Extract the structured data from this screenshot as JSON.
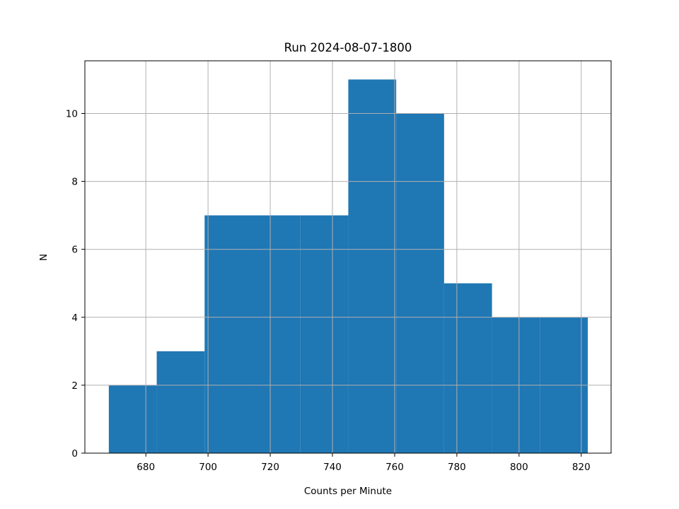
{
  "chart_data": {
    "type": "bar",
    "subtype": "histogram",
    "title": "Run 2024-08-07-1800",
    "xlabel": "Counts per Minute",
    "ylabel": "N",
    "xlim": [
      660.4,
      829.6
    ],
    "ylim": [
      0,
      11.55
    ],
    "xticks": [
      680,
      700,
      720,
      740,
      760,
      780,
      800,
      820
    ],
    "yticks": [
      0,
      2,
      4,
      6,
      8,
      10
    ],
    "grid": true,
    "bar_color": "#1f77b4",
    "bins": [
      {
        "x0": 668.1,
        "x1": 683.5,
        "count": 2
      },
      {
        "x0": 683.5,
        "x1": 698.9,
        "count": 3
      },
      {
        "x0": 698.9,
        "x1": 714.3,
        "count": 7
      },
      {
        "x0": 714.3,
        "x1": 729.7,
        "count": 7
      },
      {
        "x0": 729.7,
        "x1": 745.1,
        "count": 7
      },
      {
        "x0": 745.1,
        "x1": 760.5,
        "count": 11
      },
      {
        "x0": 760.5,
        "x1": 775.9,
        "count": 10
      },
      {
        "x0": 775.9,
        "x1": 791.3,
        "count": 5
      },
      {
        "x0": 791.3,
        "x1": 806.7,
        "count": 4
      },
      {
        "x0": 806.7,
        "x1": 822.1,
        "count": 4
      }
    ]
  }
}
